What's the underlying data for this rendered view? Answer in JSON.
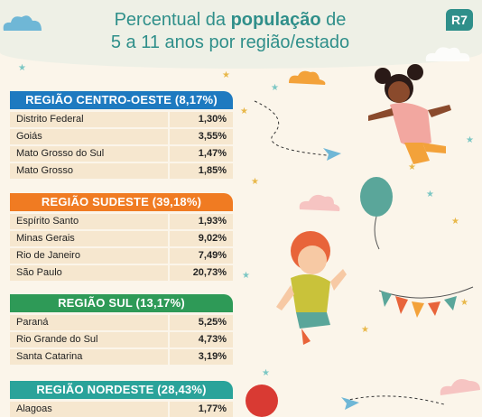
{
  "header": {
    "title_part1": "Percentual da ",
    "title_bold": "população",
    "title_part2": " de",
    "title_line2": "5 a 11 anos por região/estado",
    "logo": "R7"
  },
  "colors": {
    "centro_oeste": "#1e7ac0",
    "sudeste": "#f07b22",
    "sul": "#2e9a57",
    "nordeste": "#2aa39a",
    "row_bg": "#f6e7cf",
    "title": "#2f8f8a"
  },
  "regions": [
    {
      "name": "REGIÃO CENTRO-OESTE (8,17%)",
      "states": [
        {
          "name": "Distrito Federal",
          "value": "1,30%"
        },
        {
          "name": "Goiás",
          "value": "3,55%"
        },
        {
          "name": "Mato Grosso do Sul",
          "value": "1,47%"
        },
        {
          "name": "Mato Grosso",
          "value": "1,85%"
        }
      ]
    },
    {
      "name": "REGIÃO SUDESTE (39,18%)",
      "states": [
        {
          "name": "Espírito Santo",
          "value": "1,93%"
        },
        {
          "name": "Minas Gerais",
          "value": "9,02%"
        },
        {
          "name": "Rio de Janeiro",
          "value": "7,49%"
        },
        {
          "name": "São Paulo",
          "value": "20,73%"
        }
      ]
    },
    {
      "name": "REGIÃO SUL (13,17%)",
      "states": [
        {
          "name": "Paraná",
          "value": "5,25%"
        },
        {
          "name": "Rio Grande do Sul",
          "value": "4,73%"
        },
        {
          "name": "Santa Catarina",
          "value": "3,19%"
        }
      ]
    },
    {
      "name": "REGIÃO NORDESTE (28,43%)",
      "states": [
        {
          "name": "Alagoas",
          "value": "1,77%"
        }
      ]
    }
  ]
}
